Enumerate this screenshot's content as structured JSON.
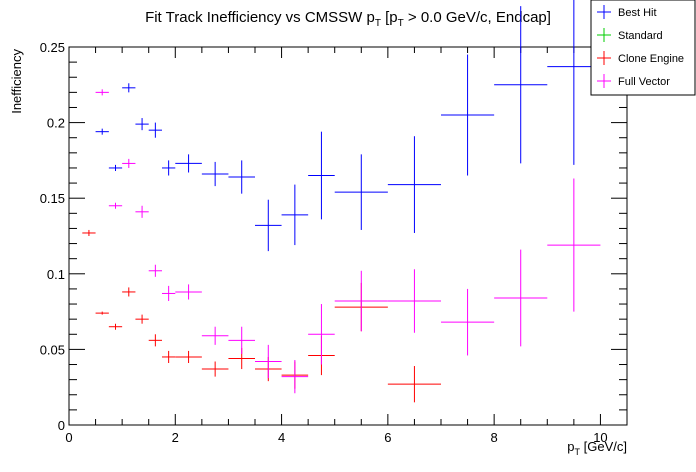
{
  "chart_data": {
    "type": "scatter",
    "title": "Fit Track Inefficiency vs CMSSW p",
    "title_parts": {
      "lead": "Fit Track Inefficiency vs CMSSW p",
      "sub1": "T",
      "mid": " [p",
      "sub2": "T",
      "tail": " > 0.0 GeV/c, Endcap]"
    },
    "xlabel": "p",
    "xlabel_parts": {
      "base": "p",
      "sub": "T",
      "tail": " [GeV/c]"
    },
    "ylabel": "Inefficiency",
    "xlim": [
      0,
      10.5
    ],
    "ylim": [
      0,
      0.25
    ],
    "xticks": [
      0,
      2,
      4,
      6,
      8,
      10
    ],
    "xtick_labels": [
      "0",
      "2",
      "4",
      "6",
      "8",
      "10"
    ],
    "yticks": [
      0,
      0.05,
      0.1,
      0.15,
      0.2,
      0.25
    ],
    "ytick_labels": [
      "0",
      "0.05",
      "0.1",
      "0.15",
      "0.2",
      "0.25"
    ],
    "grid": false,
    "legend_position": "top-right",
    "series": [
      {
        "name": "Best Hit",
        "color": "#0000ff",
        "points": [
          {
            "x": 0.625,
            "xerr": 0.125,
            "y": 0.194,
            "yerr": 0.002
          },
          {
            "x": 0.875,
            "xerr": 0.125,
            "y": 0.17,
            "yerr": 0.002
          },
          {
            "x": 1.125,
            "xerr": 0.125,
            "y": 0.223,
            "yerr": 0.003
          },
          {
            "x": 1.375,
            "xerr": 0.125,
            "y": 0.199,
            "yerr": 0.004
          },
          {
            "x": 1.625,
            "xerr": 0.125,
            "y": 0.195,
            "yerr": 0.005
          },
          {
            "x": 1.875,
            "xerr": 0.125,
            "y": 0.17,
            "yerr": 0.005
          },
          {
            "x": 2.25,
            "xerr": 0.25,
            "y": 0.173,
            "yerr": 0.006
          },
          {
            "x": 2.75,
            "xerr": 0.25,
            "y": 0.166,
            "yerr": 0.008
          },
          {
            "x": 3.25,
            "xerr": 0.25,
            "y": 0.164,
            "yerr": 0.011
          },
          {
            "x": 3.75,
            "xerr": 0.25,
            "y": 0.132,
            "yerr": 0.017
          },
          {
            "x": 4.25,
            "xerr": 0.25,
            "y": 0.139,
            "yerr": 0.02
          },
          {
            "x": 4.75,
            "xerr": 0.25,
            "y": 0.165,
            "yerr": 0.029
          },
          {
            "x": 5.5,
            "xerr": 0.5,
            "y": 0.154,
            "yerr": 0.025
          },
          {
            "x": 6.5,
            "xerr": 0.5,
            "y": 0.159,
            "yerr": 0.032
          },
          {
            "x": 7.5,
            "xerr": 0.5,
            "y": 0.205,
            "yerr": 0.04
          },
          {
            "x": 8.5,
            "xerr": 0.5,
            "y": 0.225,
            "yerr": 0.052
          },
          {
            "x": 9.5,
            "xerr": 0.5,
            "y": 0.237,
            "yerr": 0.065
          }
        ]
      },
      {
        "name": "Standard",
        "color": "#00cc00",
        "points": []
      },
      {
        "name": "Clone Engine",
        "color": "#ff0000",
        "points": [
          {
            "x": 0.375,
            "xerr": 0.125,
            "y": 0.127,
            "yerr": 0.002
          },
          {
            "x": 0.625,
            "xerr": 0.125,
            "y": 0.074,
            "yerr": 0.001
          },
          {
            "x": 0.875,
            "xerr": 0.125,
            "y": 0.065,
            "yerr": 0.002
          },
          {
            "x": 1.125,
            "xerr": 0.125,
            "y": 0.088,
            "yerr": 0.003
          },
          {
            "x": 1.375,
            "xerr": 0.125,
            "y": 0.07,
            "yerr": 0.003
          },
          {
            "x": 1.625,
            "xerr": 0.125,
            "y": 0.056,
            "yerr": 0.004
          },
          {
            "x": 1.875,
            "xerr": 0.125,
            "y": 0.045,
            "yerr": 0.004
          },
          {
            "x": 2.25,
            "xerr": 0.25,
            "y": 0.045,
            "yerr": 0.004
          },
          {
            "x": 2.75,
            "xerr": 0.25,
            "y": 0.037,
            "yerr": 0.005
          },
          {
            "x": 3.25,
            "xerr": 0.25,
            "y": 0.044,
            "yerr": 0.007
          },
          {
            "x": 3.75,
            "xerr": 0.25,
            "y": 0.037,
            "yerr": 0.008
          },
          {
            "x": 4.25,
            "xerr": 0.25,
            "y": 0.033,
            "yerr": 0.009
          },
          {
            "x": 4.75,
            "xerr": 0.25,
            "y": 0.046,
            "yerr": 0.013
          },
          {
            "x": 5.5,
            "xerr": 0.5,
            "y": 0.078,
            "yerr": 0.016
          },
          {
            "x": 6.5,
            "xerr": 0.5,
            "y": 0.027,
            "yerr": 0.012
          }
        ]
      },
      {
        "name": "Full Vector",
        "color": "#ff00ff",
        "points": [
          {
            "x": 0.625,
            "xerr": 0.125,
            "y": 0.22,
            "yerr": 0.002
          },
          {
            "x": 0.875,
            "xerr": 0.125,
            "y": 0.145,
            "yerr": 0.002
          },
          {
            "x": 1.125,
            "xerr": 0.125,
            "y": 0.173,
            "yerr": 0.003
          },
          {
            "x": 1.375,
            "xerr": 0.125,
            "y": 0.141,
            "yerr": 0.004
          },
          {
            "x": 1.625,
            "xerr": 0.125,
            "y": 0.102,
            "yerr": 0.004
          },
          {
            "x": 1.875,
            "xerr": 0.125,
            "y": 0.087,
            "yerr": 0.005
          },
          {
            "x": 2.25,
            "xerr": 0.25,
            "y": 0.088,
            "yerr": 0.005
          },
          {
            "x": 2.75,
            "xerr": 0.25,
            "y": 0.059,
            "yerr": 0.006
          },
          {
            "x": 3.25,
            "xerr": 0.25,
            "y": 0.056,
            "yerr": 0.009
          },
          {
            "x": 3.75,
            "xerr": 0.25,
            "y": 0.042,
            "yerr": 0.011
          },
          {
            "x": 4.25,
            "xerr": 0.25,
            "y": 0.032,
            "yerr": 0.011
          },
          {
            "x": 4.75,
            "xerr": 0.25,
            "y": 0.06,
            "yerr": 0.02
          },
          {
            "x": 5.5,
            "xerr": 0.5,
            "y": 0.082,
            "yerr": 0.02
          },
          {
            "x": 6.5,
            "xerr": 0.5,
            "y": 0.082,
            "yerr": 0.021
          },
          {
            "x": 7.5,
            "xerr": 0.5,
            "y": 0.068,
            "yerr": 0.022
          },
          {
            "x": 8.5,
            "xerr": 0.5,
            "y": 0.084,
            "yerr": 0.032
          },
          {
            "x": 9.5,
            "xerr": 0.5,
            "y": 0.119,
            "yerr": 0.044
          }
        ]
      }
    ]
  }
}
